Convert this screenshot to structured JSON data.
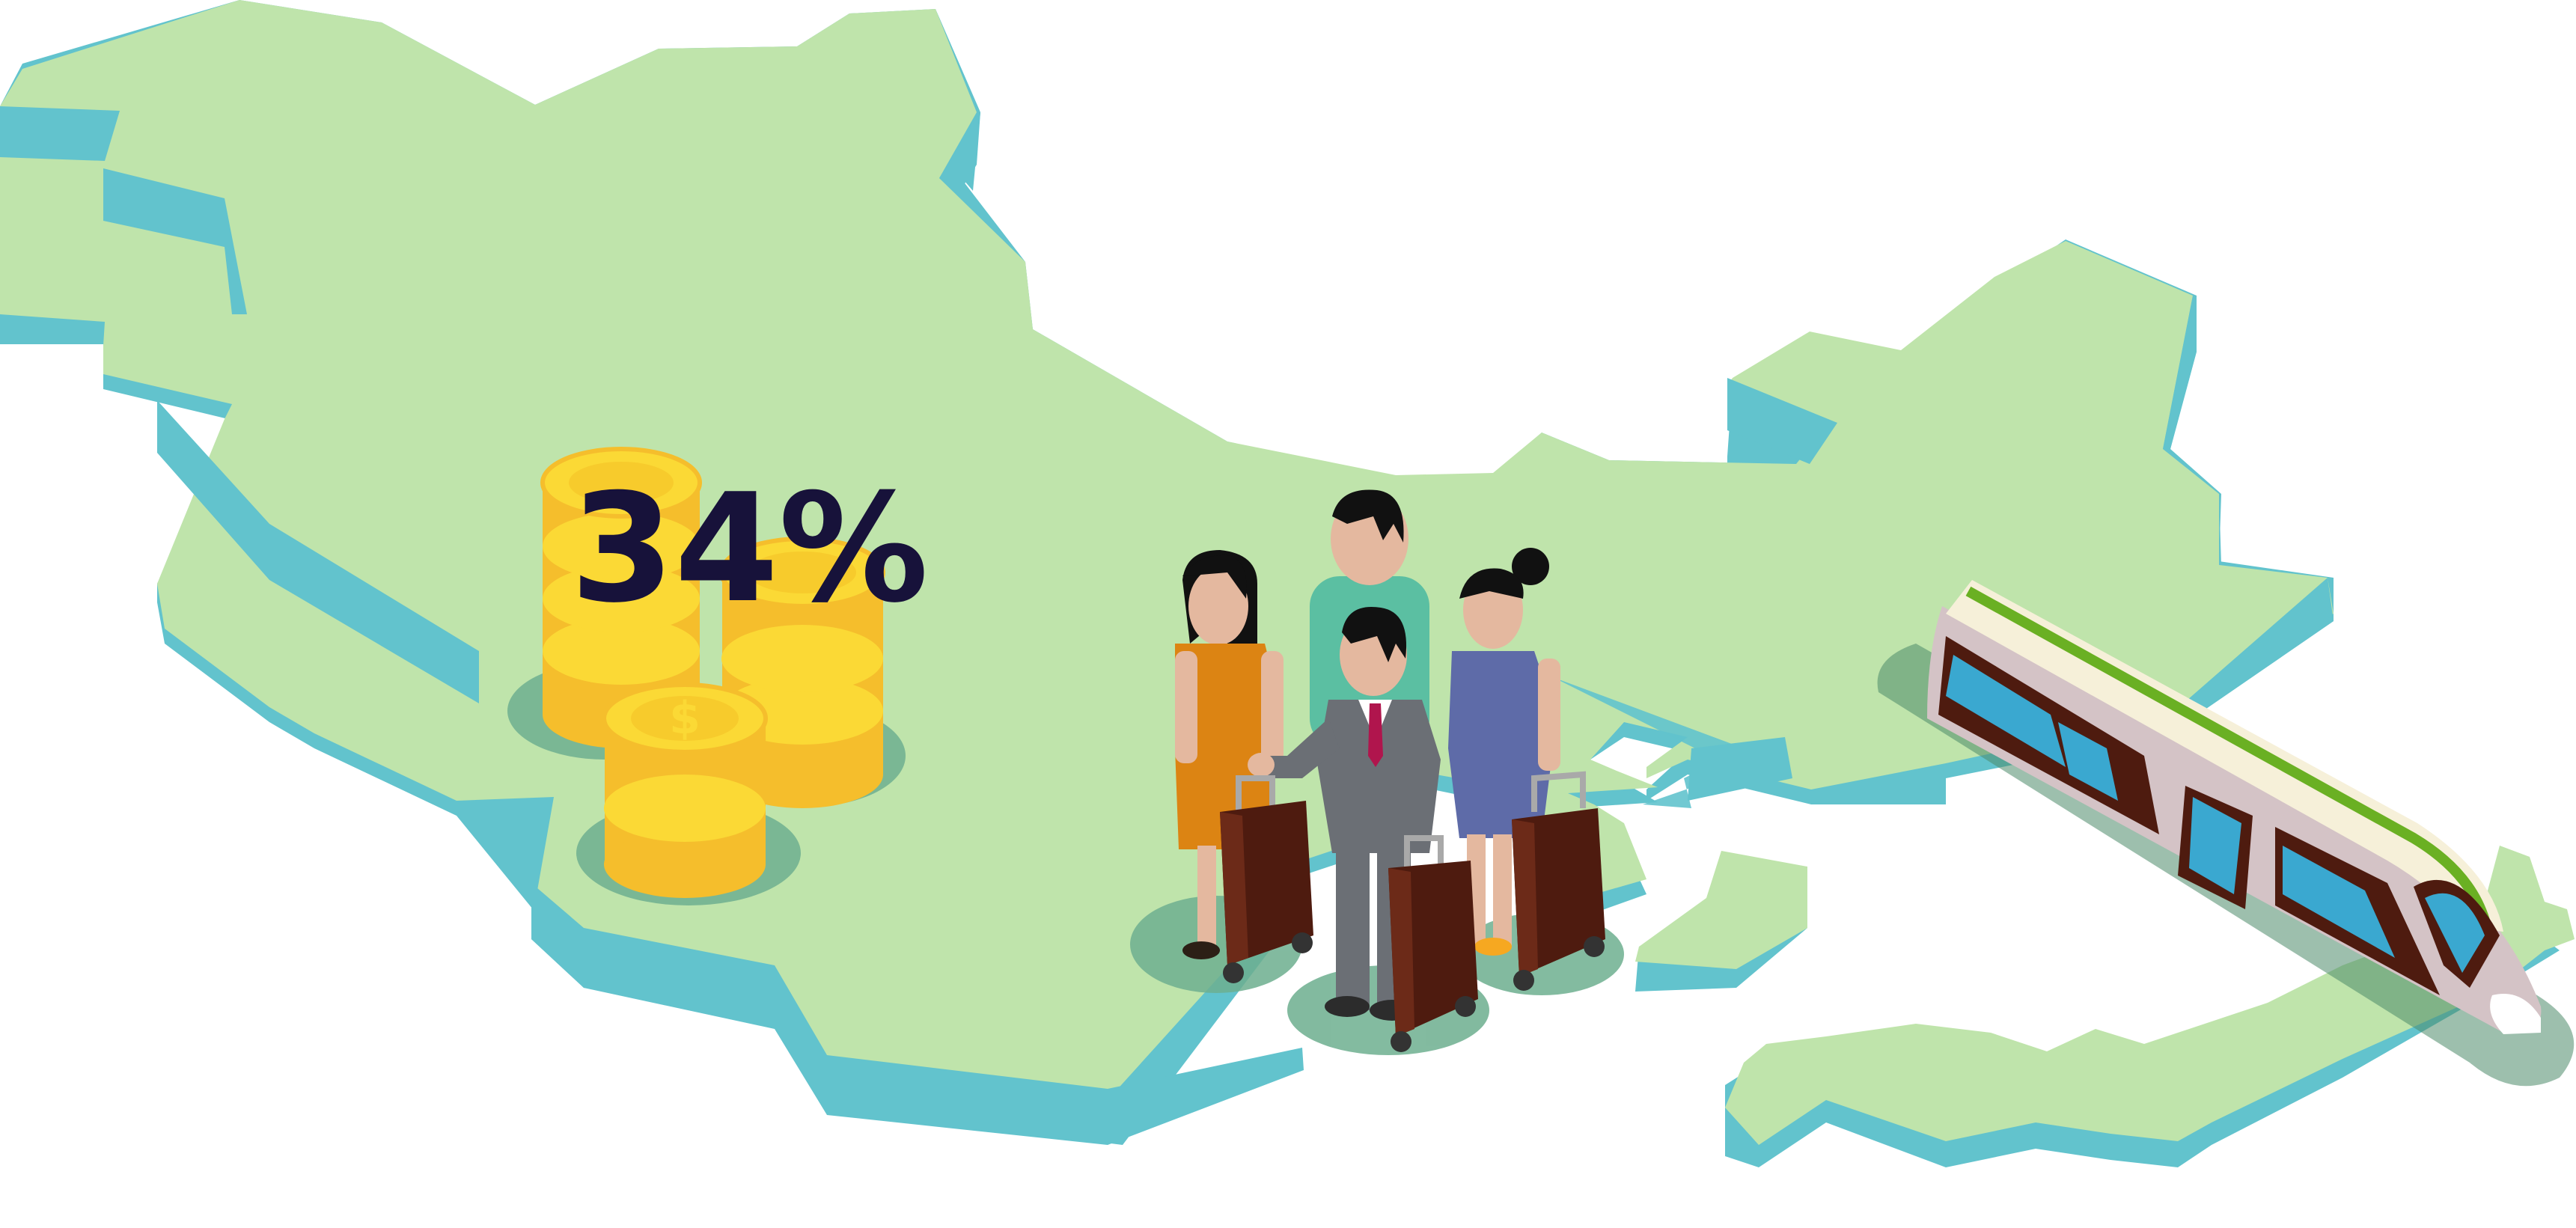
{
  "illustration": {
    "statistic_label": "34%",
    "colors": {
      "land": "#bfe4ab",
      "land_edge": "#62c3cd",
      "coin_light": "#fbd935",
      "coin_dark": "#f5be2c",
      "shadow": "#6daf8f",
      "text": "#17123a",
      "suitcase": "#4e1b0f",
      "train_body": "#f6f0d9",
      "train_side": "#d4c3c6",
      "train_stripe": "#6ab023",
      "window": "#3aa8d0"
    },
    "icons": [
      "map-china-icon",
      "map-korea-icon",
      "map-japan-icon",
      "coin-stack-icon",
      "traveler-icon",
      "suitcase-icon",
      "bullet-train-icon"
    ]
  }
}
